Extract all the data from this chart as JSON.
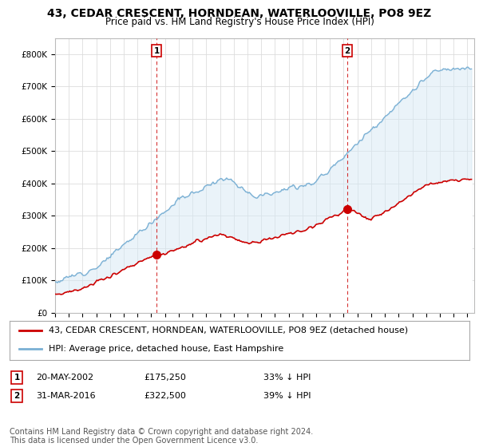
{
  "title": "43, CEDAR CRESCENT, HORNDEAN, WATERLOOVILLE, PO8 9EZ",
  "subtitle": "Price paid vs. HM Land Registry's House Price Index (HPI)",
  "ylabel_ticks": [
    "£0",
    "£100K",
    "£200K",
    "£300K",
    "£400K",
    "£500K",
    "£600K",
    "£700K",
    "£800K"
  ],
  "ytick_values": [
    0,
    100000,
    200000,
    300000,
    400000,
    500000,
    600000,
    700000,
    800000
  ],
  "ylim": [
    0,
    850000
  ],
  "xlim_start": 1995.0,
  "xlim_end": 2025.5,
  "transaction1": {
    "date_num": 2002.38,
    "price": 175250,
    "label": "1",
    "text": "20-MAY-2002",
    "price_text": "£175,250",
    "hpi_text": "33% ↓ HPI"
  },
  "transaction2": {
    "date_num": 2016.25,
    "price": 322500,
    "label": "2",
    "text": "31-MAR-2016",
    "price_text": "£322,500",
    "hpi_text": "39% ↓ HPI"
  },
  "legend_entry1": "43, CEDAR CRESCENT, HORNDEAN, WATERLOOVILLE, PO8 9EZ (detached house)",
  "legend_entry2": "HPI: Average price, detached house, East Hampshire",
  "footer": "Contains HM Land Registry data © Crown copyright and database right 2024.\nThis data is licensed under the Open Government Licence v3.0.",
  "property_color": "#cc0000",
  "hpi_color": "#7ab0d4",
  "fill_color": "#d6e8f5",
  "grid_color": "#dddddd",
  "background_color": "#ffffff",
  "dashed_line_color": "#cc0000",
  "title_fontsize": 10,
  "subtitle_fontsize": 8.5,
  "tick_fontsize": 7.5,
  "legend_fontsize": 8,
  "footer_fontsize": 7
}
